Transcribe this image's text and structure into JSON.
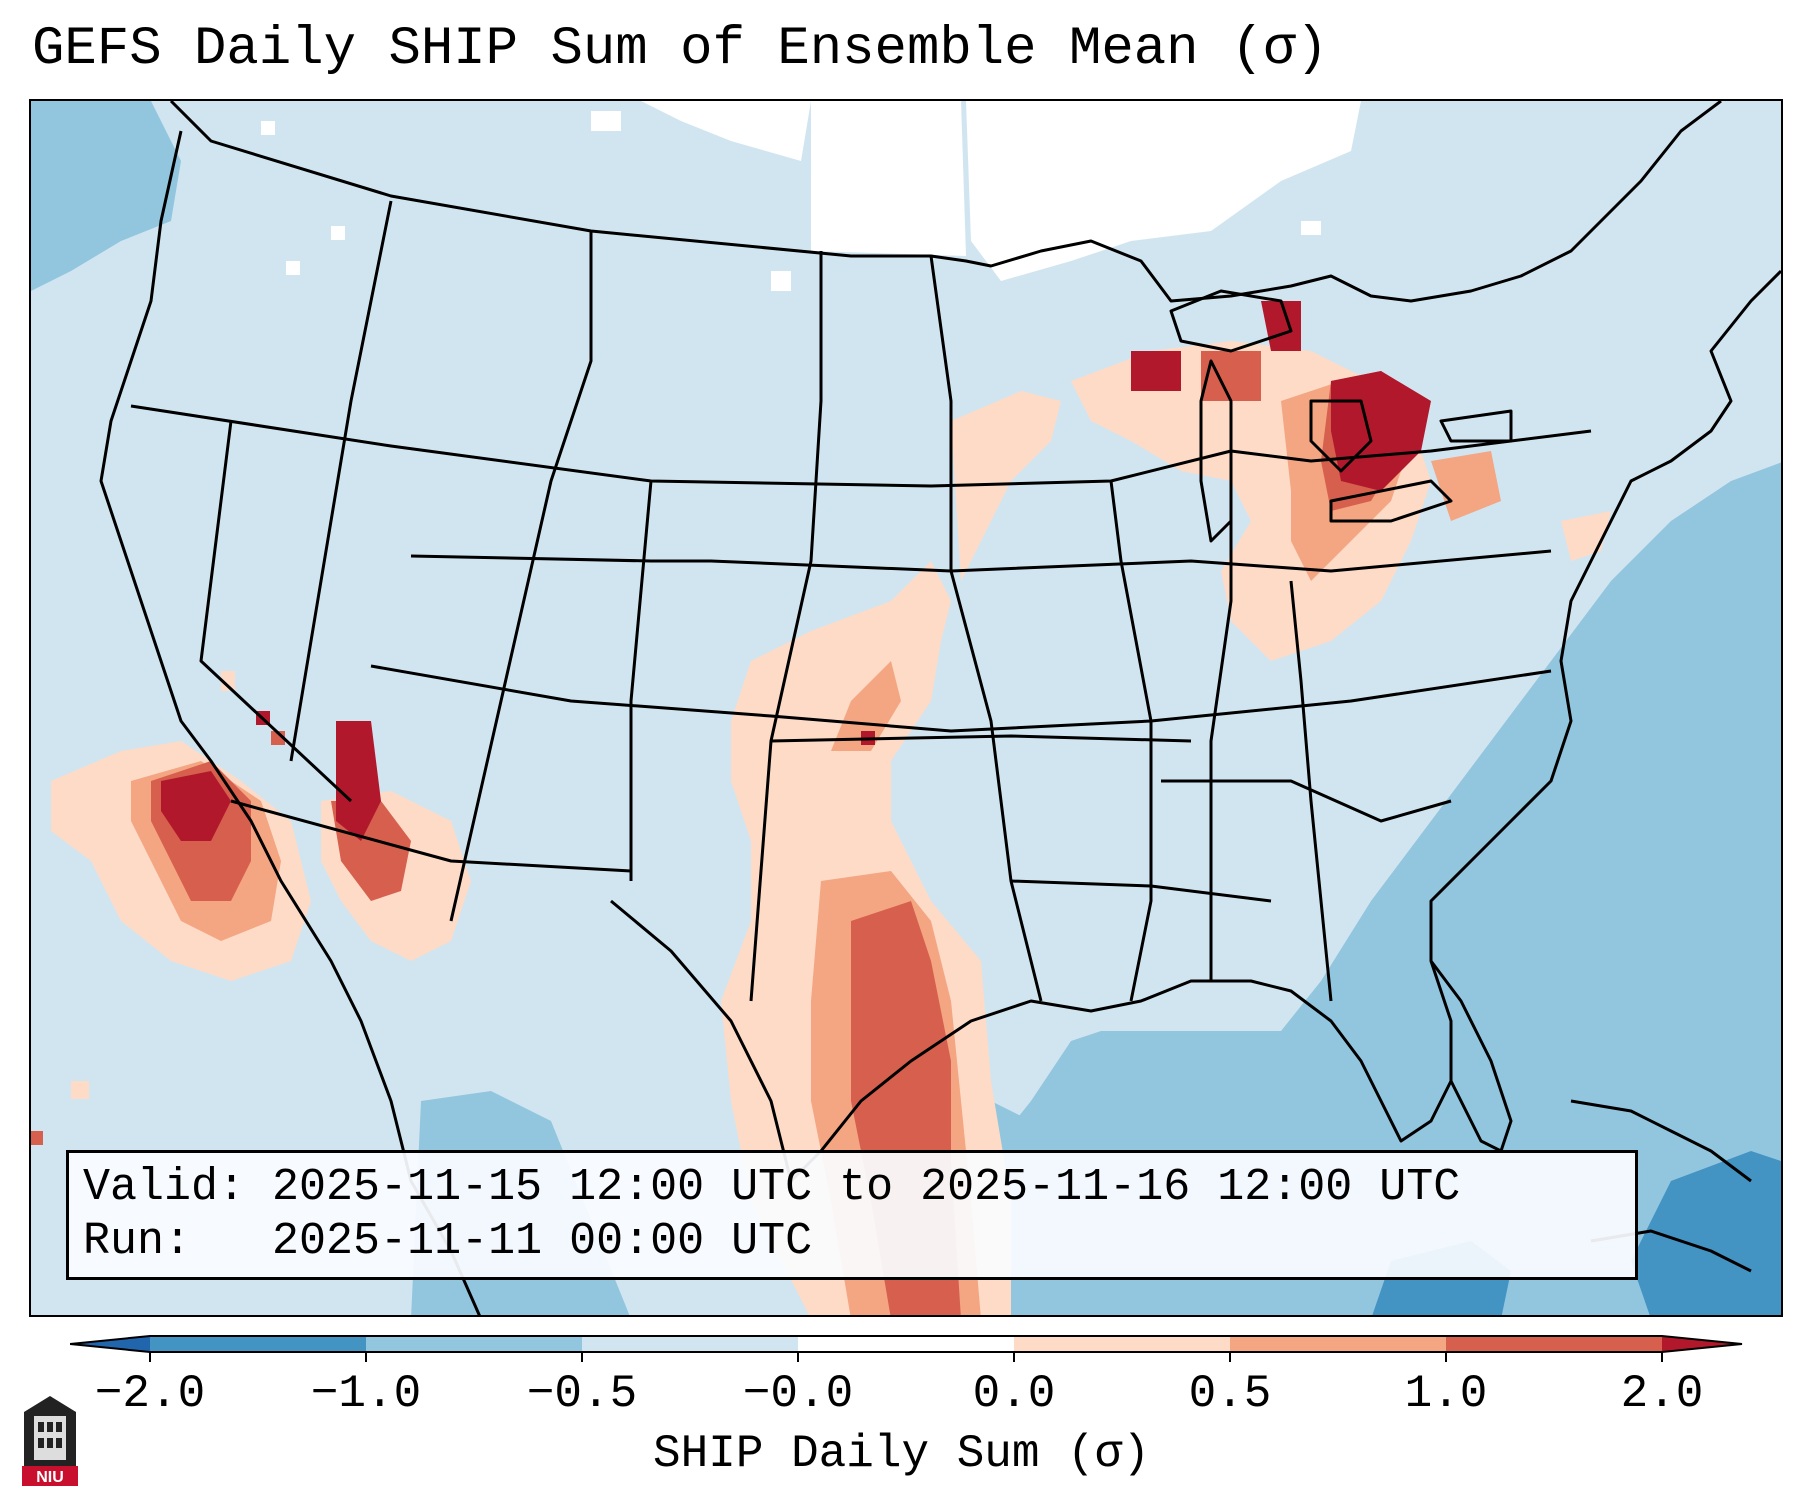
{
  "title": "GEFS Daily SHIP Sum of Ensemble Mean (σ)",
  "info": {
    "valid_label": "Valid:",
    "valid_value": "2025-11-15 12:00 UTC to 2025-11-16 12:00 UTC",
    "run_label": "Run:",
    "run_value": "2025-11-11 00:00 UTC"
  },
  "colorbar": {
    "title": "SHIP Daily Sum (σ)",
    "ticks": [
      "−2.0",
      "−1.0",
      "−0.5",
      "−0.0",
      "0.0",
      "0.5",
      "1.0",
      "2.0"
    ],
    "bin_colors": [
      "#4393c3",
      "#92c5de",
      "#d1e5f0",
      "#ffffff",
      "#fddbc7",
      "#f4a582",
      "#d6604d",
      "#b2182b"
    ]
  },
  "map": {
    "region": "CONUS",
    "field_colors": {
      "background": "#d1e5f0",
      "ocean_low": "#92c5de",
      "ocean_lower": "#4393c3",
      "near_zero": "#ffffff",
      "weak_pos": "#fddbc7",
      "mod_pos": "#f4a582",
      "strong_pos": "#d6604d",
      "very_strong_pos": "#b2182b"
    }
  },
  "logo": {
    "text": "NIU"
  }
}
